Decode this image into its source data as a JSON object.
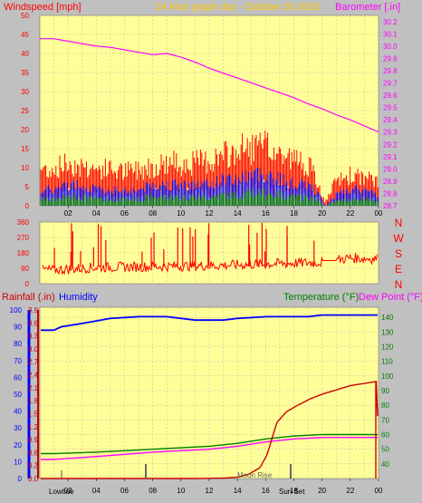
{
  "header": {
    "windspeed_label": "Windspeed [mph]",
    "title": "24 hour graph day - October 30 2025",
    "barometer_label": "Barometer [.in]"
  },
  "bottom_header": {
    "rainfall_label": "Rainfall (.in)",
    "humidity_label": "Humidity",
    "temperature_label": "Temperature (°F)",
    "dewpoint_label": "Dew Point (°F)"
  },
  "direction_labels": [
    "N",
    "W",
    "S",
    "E",
    "N"
  ],
  "x_ticks": [
    "02",
    "04",
    "06",
    "08",
    "10",
    "12",
    "14",
    "16",
    "18",
    "20",
    "22",
    "00"
  ],
  "annotations": {
    "low_tide": "Lowtide",
    "moon_rise": "Moon Rise",
    "sun_set": "Sun Set"
  },
  "colors": {
    "plot_bg": "#ffff99",
    "outer_bg": "#c0c0c0",
    "wind": "#ff0000",
    "wind_dark": "#dd0000",
    "gust_blue": "#0000ff",
    "avg_green": "#008000",
    "barometer": "#ff00ff",
    "direction": "#ff0000",
    "rain": "#cc0000",
    "humidity": "#0000ff",
    "temperature": "#008000",
    "dewpoint": "#ff00ff",
    "title": "#ffcc00",
    "grid": "#d0b0b0"
  },
  "chart_data": [
    {
      "type": "line",
      "name": "wind-barometer",
      "x_range": [
        1,
        24
      ],
      "y_left": {
        "label": "Windspeed [mph]",
        "ticks": [
          0,
          5,
          10,
          15,
          20,
          25,
          30,
          35,
          40,
          45,
          50
        ],
        "range": [
          0,
          50
        ]
      },
      "y_right": {
        "label": "Barometer [.in]",
        "ticks": [
          28.7,
          28.8,
          28.9,
          29.0,
          29.1,
          29.2,
          29.3,
          29.4,
          29.5,
          29.6,
          29.7,
          29.8,
          29.9,
          30.0,
          30.1,
          30.2
        ],
        "range": [
          28.7,
          30.25
        ]
      },
      "wind_envelope": {
        "x": [
          1,
          2,
          3,
          4,
          5,
          6,
          7,
          8,
          9,
          10,
          11,
          12,
          13,
          14,
          15,
          16,
          17,
          18,
          19,
          19.8,
          20.2,
          21,
          22,
          23,
          24
        ],
        "gust": [
          12,
          14,
          13,
          12,
          12,
          11,
          12,
          13,
          14,
          14,
          14,
          15,
          16,
          18,
          19,
          19,
          17,
          15,
          14,
          6,
          1,
          8,
          10,
          9,
          8
        ],
        "avg": [
          3,
          4,
          4,
          3,
          3,
          3,
          3,
          4,
          4,
          4,
          4,
          4,
          5,
          5,
          6,
          6,
          5,
          4,
          4,
          2,
          0,
          2,
          3,
          3,
          2
        ]
      },
      "barometer": {
        "x": [
          1,
          2,
          3,
          4,
          5,
          6,
          7,
          8,
          9,
          10,
          11,
          12,
          13,
          14,
          15,
          16,
          17,
          18,
          19,
          20,
          21,
          22,
          23,
          24
        ],
        "values": [
          30.06,
          30.04,
          30.02,
          30.0,
          29.99,
          29.97,
          29.95,
          29.93,
          29.94,
          29.91,
          29.87,
          29.82,
          29.78,
          29.74,
          29.7,
          29.66,
          29.62,
          29.58,
          29.53,
          29.49,
          29.44,
          29.4,
          29.35,
          29.3
        ]
      }
    },
    {
      "type": "line",
      "name": "wind-direction",
      "x_range": [
        1,
        24
      ],
      "y_ticks": [
        0,
        90,
        180,
        270,
        360
      ],
      "range": [
        0,
        360
      ],
      "values_approx": {
        "x": [
          1,
          4,
          8,
          12,
          16,
          20,
          20.6,
          22,
          24
        ],
        "y": [
          80,
          95,
          100,
          105,
          115,
          125,
          135,
          150,
          145
        ]
      }
    },
    {
      "type": "line",
      "name": "rain-humidity-temperature",
      "x_range": [
        1,
        24
      ],
      "y_left": {
        "ticks": [
          0,
          10,
          20,
          30,
          40,
          50,
          60,
          70,
          80,
          90,
          100
        ],
        "range": [
          0,
          100
        ]
      },
      "y_rain": {
        "ticks": [
          0,
          0.3,
          0.6,
          0.9,
          1.2,
          1.5,
          1.8,
          2.1,
          2.4,
          2.7,
          3.0,
          3.3,
          3.6,
          3.9
        ],
        "range": [
          0,
          3.9
        ]
      },
      "y_right": {
        "ticks": [
          40,
          50,
          60,
          70,
          80,
          90,
          100,
          110,
          120,
          130,
          140
        ],
        "range": [
          30,
          145
        ]
      },
      "series": [
        {
          "name": "Humidity",
          "x": [
            1,
            1.5,
            3,
            5,
            7,
            8,
            9,
            10,
            11,
            12,
            13,
            14,
            16,
            17,
            18,
            19,
            20,
            21,
            22,
            23,
            24
          ],
          "values": [
            88,
            90,
            92,
            95,
            96,
            96,
            96,
            95,
            94,
            94,
            94,
            95,
            96,
            96,
            96,
            96,
            97,
            97,
            97,
            97,
            97
          ]
        },
        {
          "name": "Temperature",
          "x": [
            1,
            4,
            8,
            12,
            14,
            16,
            18,
            20,
            22,
            24
          ],
          "values": [
            47,
            48,
            50,
            52,
            54,
            57,
            59,
            60,
            60,
            60
          ]
        },
        {
          "name": "Dew Point",
          "x": [
            1,
            4,
            8,
            12,
            14,
            16,
            18,
            20,
            22,
            24
          ],
          "values": [
            43,
            45,
            48,
            50,
            52,
            55,
            57,
            58,
            58,
            58
          ]
        },
        {
          "name": "Rainfall",
          "x": [
            1,
            11,
            13,
            14,
            14.8,
            15.6,
            16.1,
            16.8,
            17.5,
            18.3,
            19.2,
            20,
            21,
            22,
            23,
            23.9,
            24
          ],
          "values": [
            0,
            0,
            0.01,
            0.03,
            0.1,
            0.25,
            0.55,
            1.3,
            1.55,
            1.7,
            1.85,
            1.95,
            2.05,
            2.15,
            2.2,
            2.25,
            0
          ]
        }
      ]
    }
  ]
}
